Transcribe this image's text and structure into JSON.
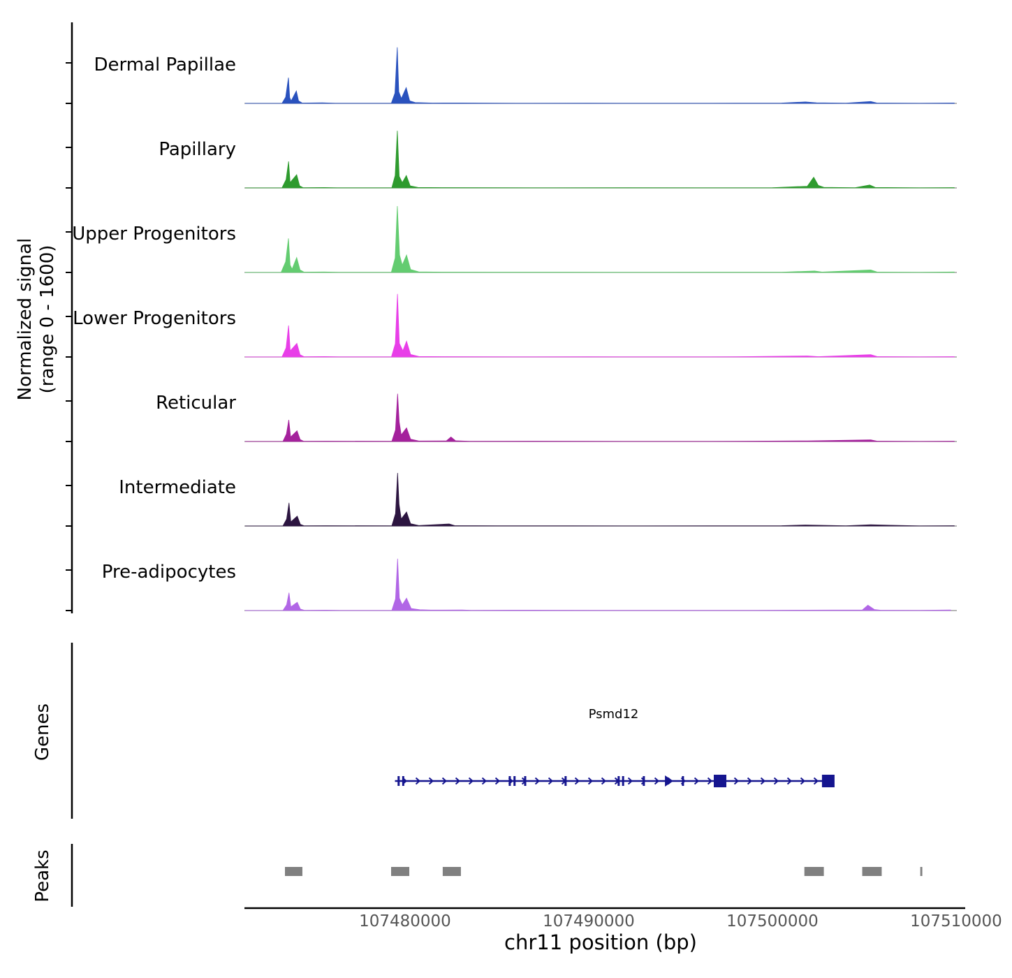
{
  "labels": {
    "ylabel": "Normalized signal\n(range 0 - 1600)",
    "xlabel": "chr11 position (bp)",
    "genes": "Genes",
    "peaks": "Peaks"
  },
  "chart_data": {
    "type": "area",
    "title": "",
    "xlabel": "chr11 position (bp)",
    "ylabel": "Normalized signal (range 0 - 1600)",
    "xlim": [
      107471255,
      107510040
    ],
    "ylim": [
      0,
      1600
    ],
    "x_ticks": [
      {
        "pos": 107480000,
        "label": "107480000"
      },
      {
        "pos": 107490000,
        "label": "107490000"
      },
      {
        "pos": 107500000,
        "label": "107500000"
      },
      {
        "pos": 107510000,
        "label": "107510000"
      }
    ],
    "series": [
      {
        "name": "Dermal Papillae",
        "color": "#2a52be",
        "points": [
          [
            107471300,
            2
          ],
          [
            107473300,
            3
          ],
          [
            107473500,
            150
          ],
          [
            107473650,
            620
          ],
          [
            107473720,
            140
          ],
          [
            107473800,
            60
          ],
          [
            107474080,
            300
          ],
          [
            107474200,
            60
          ],
          [
            107474400,
            8
          ],
          [
            107475500,
            15
          ],
          [
            107476200,
            3
          ],
          [
            107479250,
            5
          ],
          [
            107479450,
            250
          ],
          [
            107479575,
            1350
          ],
          [
            107479660,
            280
          ],
          [
            107479800,
            120
          ],
          [
            107480060,
            380
          ],
          [
            107480250,
            60
          ],
          [
            107480550,
            20
          ],
          [
            107481500,
            8
          ],
          [
            107483000,
            10
          ],
          [
            107486000,
            4
          ],
          [
            107490000,
            5
          ],
          [
            107494000,
            4
          ],
          [
            107498000,
            5
          ],
          [
            107500500,
            8
          ],
          [
            107501800,
            35
          ],
          [
            107502400,
            15
          ],
          [
            107504000,
            5
          ],
          [
            107505350,
            45
          ],
          [
            107505700,
            8
          ],
          [
            107508000,
            4
          ],
          [
            107509900,
            10
          ]
        ]
      },
      {
        "name": "Papillary",
        "color": "#2e9b2e",
        "points": [
          [
            107471300,
            2
          ],
          [
            107473300,
            4
          ],
          [
            107473520,
            200
          ],
          [
            107473660,
            640
          ],
          [
            107473740,
            130
          ],
          [
            107474100,
            320
          ],
          [
            107474260,
            50
          ],
          [
            107474450,
            6
          ],
          [
            107475600,
            10
          ],
          [
            107476300,
            3
          ],
          [
            107479280,
            5
          ],
          [
            107479460,
            300
          ],
          [
            107479580,
            1380
          ],
          [
            107479680,
            280
          ],
          [
            107479850,
            130
          ],
          [
            107480070,
            300
          ],
          [
            107480280,
            50
          ],
          [
            107480700,
            12
          ],
          [
            107482000,
            8
          ],
          [
            107485000,
            5
          ],
          [
            107488000,
            4
          ],
          [
            107492000,
            5
          ],
          [
            107496000,
            4
          ],
          [
            107500000,
            6
          ],
          [
            107501900,
            40
          ],
          [
            107502250,
            260
          ],
          [
            107502500,
            60
          ],
          [
            107502800,
            15
          ],
          [
            107504500,
            6
          ],
          [
            107505300,
            70
          ],
          [
            107505600,
            12
          ],
          [
            107508000,
            4
          ],
          [
            107509900,
            8
          ]
        ]
      },
      {
        "name": "Upper Progenitors",
        "color": "#63cc70",
        "points": [
          [
            107471300,
            2
          ],
          [
            107473250,
            4
          ],
          [
            107473500,
            260
          ],
          [
            107473650,
            820
          ],
          [
            107473740,
            180
          ],
          [
            107473850,
            80
          ],
          [
            107474100,
            360
          ],
          [
            107474280,
            60
          ],
          [
            107474500,
            8
          ],
          [
            107475600,
            12
          ],
          [
            107476400,
            3
          ],
          [
            107479250,
            5
          ],
          [
            107479460,
            350
          ],
          [
            107479580,
            1600
          ],
          [
            107479700,
            420
          ],
          [
            107479850,
            180
          ],
          [
            107480080,
            420
          ],
          [
            107480300,
            70
          ],
          [
            107480750,
            15
          ],
          [
            107482000,
            8
          ],
          [
            107485000,
            5
          ],
          [
            107489000,
            5
          ],
          [
            107493000,
            4
          ],
          [
            107497000,
            5
          ],
          [
            107500500,
            6
          ],
          [
            107502300,
            35
          ],
          [
            107502700,
            10
          ],
          [
            107505350,
            60
          ],
          [
            107505700,
            10
          ],
          [
            107508000,
            4
          ],
          [
            107509900,
            12
          ]
        ]
      },
      {
        "name": "Lower Progenitors",
        "color": "#e83ee8",
        "points": [
          [
            107471300,
            2
          ],
          [
            107473300,
            4
          ],
          [
            107473520,
            220
          ],
          [
            107473660,
            760
          ],
          [
            107473750,
            150
          ],
          [
            107474110,
            330
          ],
          [
            107474280,
            55
          ],
          [
            107474500,
            6
          ],
          [
            107475600,
            10
          ],
          [
            107476400,
            3
          ],
          [
            107479260,
            5
          ],
          [
            107479470,
            320
          ],
          [
            107479585,
            1520
          ],
          [
            107479690,
            330
          ],
          [
            107479880,
            150
          ],
          [
            107480080,
            380
          ],
          [
            107480300,
            60
          ],
          [
            107480750,
            12
          ],
          [
            107482000,
            8
          ],
          [
            107486000,
            4
          ],
          [
            107490000,
            5
          ],
          [
            107494000,
            4
          ],
          [
            107498000,
            5
          ],
          [
            107501900,
            25
          ],
          [
            107502500,
            8
          ],
          [
            107505350,
            55
          ],
          [
            107505700,
            10
          ],
          [
            107508000,
            4
          ],
          [
            107509900,
            8
          ]
        ]
      },
      {
        "name": "Reticular",
        "color": "#a4219c",
        "points": [
          [
            107471300,
            2
          ],
          [
            107473350,
            4
          ],
          [
            107473540,
            180
          ],
          [
            107473670,
            520
          ],
          [
            107473770,
            110
          ],
          [
            107474120,
            260
          ],
          [
            107474290,
            45
          ],
          [
            107474480,
            6
          ],
          [
            107475700,
            8
          ],
          [
            107479280,
            5
          ],
          [
            107479480,
            280
          ],
          [
            107479595,
            1150
          ],
          [
            107479680,
            470
          ],
          [
            107479790,
            160
          ],
          [
            107480080,
            330
          ],
          [
            107480300,
            55
          ],
          [
            107480750,
            12
          ],
          [
            107482250,
            15
          ],
          [
            107482500,
            110
          ],
          [
            107482750,
            18
          ],
          [
            107483500,
            6
          ],
          [
            107487000,
            8
          ],
          [
            107490000,
            5
          ],
          [
            107494000,
            4
          ],
          [
            107498000,
            5
          ],
          [
            107501900,
            15
          ],
          [
            107505350,
            40
          ],
          [
            107505700,
            8
          ],
          [
            107508000,
            4
          ],
          [
            107509900,
            8
          ]
        ]
      },
      {
        "name": "Intermediate",
        "color": "#2c1540",
        "points": [
          [
            107471300,
            2
          ],
          [
            107473350,
            4
          ],
          [
            107473550,
            170
          ],
          [
            107473680,
            560
          ],
          [
            107473780,
            100
          ],
          [
            107474130,
            240
          ],
          [
            107474300,
            40
          ],
          [
            107474500,
            6
          ],
          [
            107475700,
            8
          ],
          [
            107479280,
            5
          ],
          [
            107479480,
            300
          ],
          [
            107479595,
            1280
          ],
          [
            107479675,
            520
          ],
          [
            107479790,
            170
          ],
          [
            107480080,
            340
          ],
          [
            107480300,
            55
          ],
          [
            107480750,
            12
          ],
          [
            107482400,
            50
          ],
          [
            107482700,
            10
          ],
          [
            107485000,
            5
          ],
          [
            107489000,
            5
          ],
          [
            107493000,
            4
          ],
          [
            107497000,
            5
          ],
          [
            107500500,
            8
          ],
          [
            107501800,
            25
          ],
          [
            107504000,
            5
          ],
          [
            107505350,
            30
          ],
          [
            107508000,
            4
          ],
          [
            107509900,
            8
          ]
        ]
      },
      {
        "name": "Pre-adipocytes",
        "color": "#b166e6",
        "points": [
          [
            107471300,
            2
          ],
          [
            107473350,
            4
          ],
          [
            107473550,
            140
          ],
          [
            107473680,
            430
          ],
          [
            107473780,
            90
          ],
          [
            107474130,
            200
          ],
          [
            107474300,
            35
          ],
          [
            107474520,
            6
          ],
          [
            107475700,
            10
          ],
          [
            107476500,
            4
          ],
          [
            107479280,
            5
          ],
          [
            107479480,
            280
          ],
          [
            107479595,
            1250
          ],
          [
            107479690,
            300
          ],
          [
            107479850,
            140
          ],
          [
            107480080,
            300
          ],
          [
            107480330,
            50
          ],
          [
            107480800,
            20
          ],
          [
            107481400,
            12
          ],
          [
            107483100,
            15
          ],
          [
            107483600,
            6
          ],
          [
            107485800,
            10
          ],
          [
            107488200,
            8
          ],
          [
            107490600,
            6
          ],
          [
            107493000,
            5
          ],
          [
            107496000,
            5
          ],
          [
            107499000,
            6
          ],
          [
            107501800,
            10
          ],
          [
            107504900,
            15
          ],
          [
            107505200,
            130
          ],
          [
            107505550,
            25
          ],
          [
            107505900,
            8
          ],
          [
            107508000,
            6
          ],
          [
            107509700,
            14
          ]
        ]
      }
    ],
    "gene_track": {
      "label": "Genes",
      "genes": [
        {
          "name": "Psmd12",
          "start": 107479450,
          "end": 107503250,
          "strand": "+",
          "color": "#15158f",
          "features": [
            {
              "pos": 107479650,
              "type": "tick"
            },
            {
              "pos": 107479900,
              "type": "tick"
            },
            {
              "pos": 107485700,
              "type": "tick"
            },
            {
              "pos": 107485960,
              "type": "tick"
            },
            {
              "pos": 107486540,
              "type": "tick"
            },
            {
              "pos": 107488740,
              "type": "tick"
            },
            {
              "pos": 107491630,
              "type": "tick"
            },
            {
              "pos": 107491870,
              "type": "tick"
            },
            {
              "pos": 107493000,
              "type": "tick"
            },
            {
              "pos": 107494340,
              "type": "thick"
            },
            {
              "pos": 107495130,
              "type": "tick"
            },
            {
              "pos": 107497150,
              "type": "box"
            },
            {
              "pos": 107503040,
              "type": "box"
            }
          ]
        }
      ]
    },
    "peaks_track": {
      "label": "Peaks",
      "color": "#808080",
      "intervals": [
        [
          107473460,
          107474410
        ],
        [
          107479240,
          107480230
        ],
        [
          107482050,
          107483040
        ],
        [
          107501740,
          107502800
        ],
        [
          107504890,
          107505950
        ],
        [
          107508050,
          107508160
        ]
      ]
    }
  }
}
